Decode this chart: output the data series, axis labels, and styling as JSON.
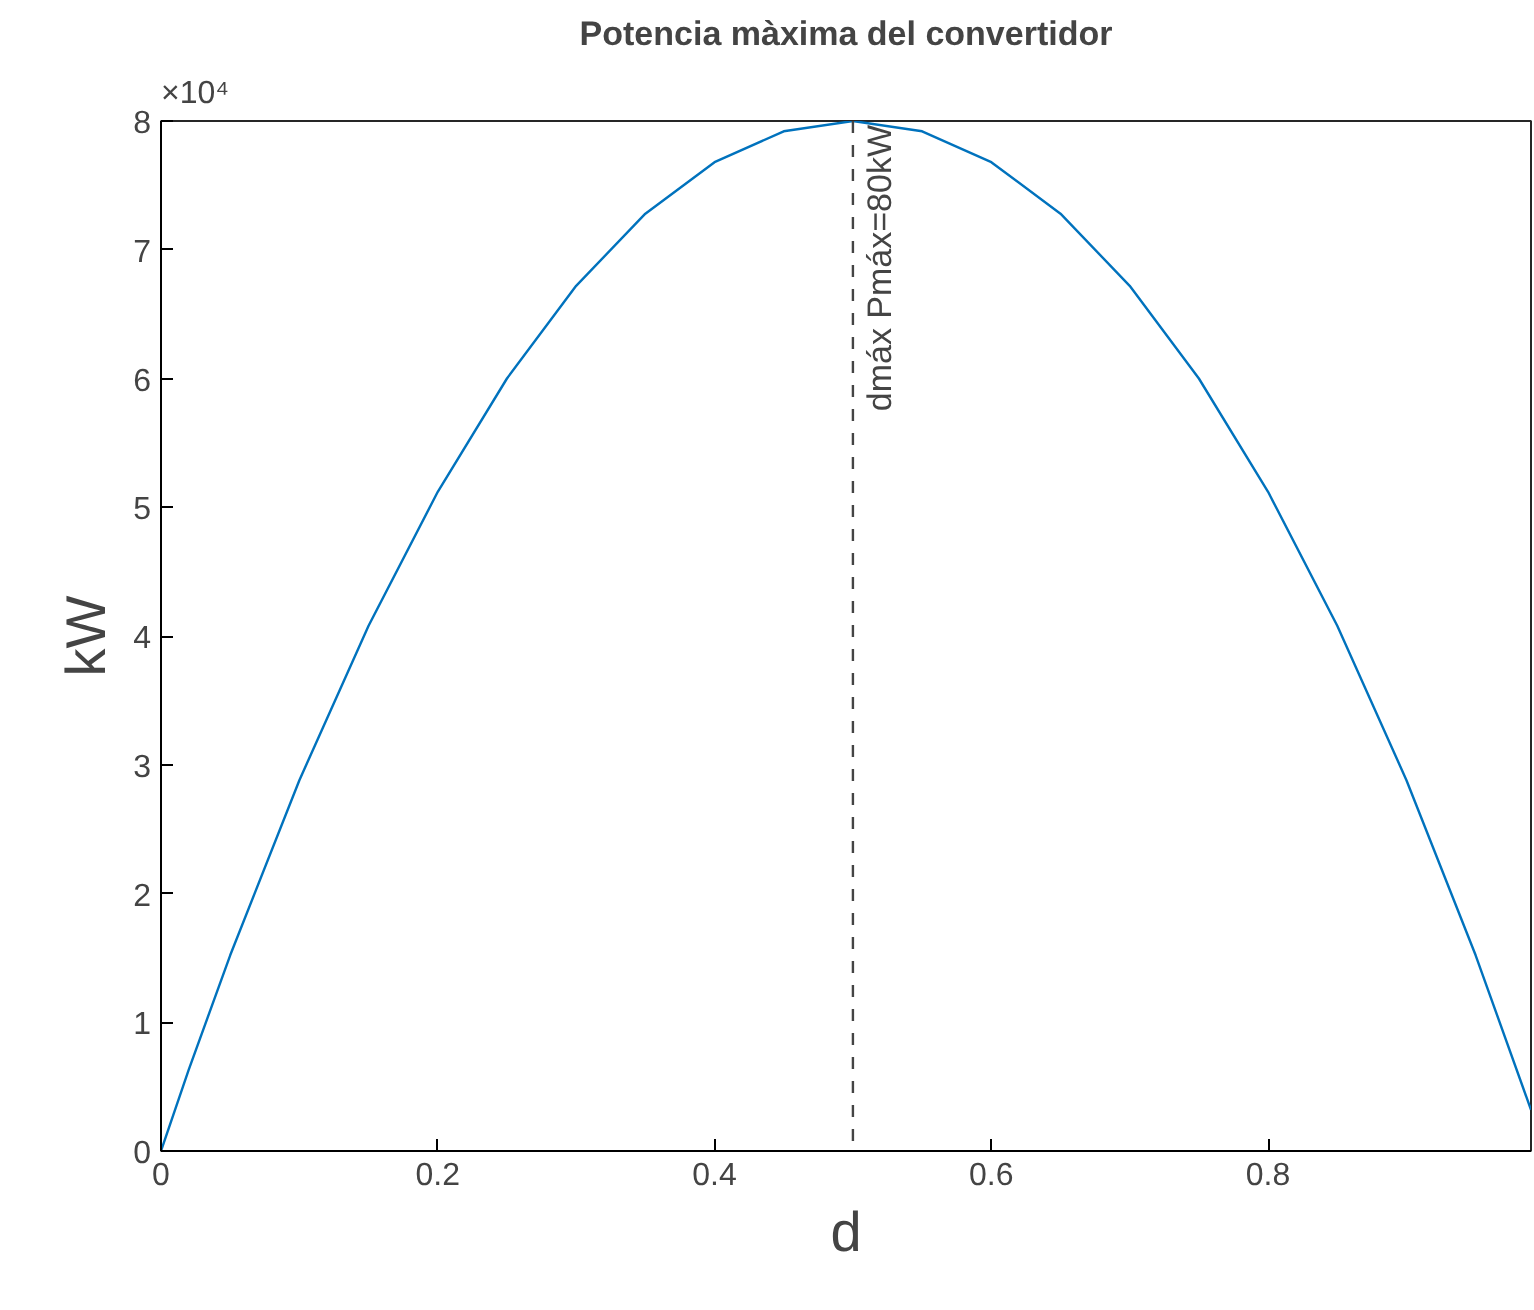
{
  "chart_data": {
    "type": "line",
    "title": "Potencia màxima del convertidor",
    "xlabel": "d",
    "ylabel": "kW",
    "x": [
      0,
      0.02,
      0.05,
      0.1,
      0.15,
      0.2,
      0.25,
      0.3,
      0.35,
      0.4,
      0.45,
      0.5,
      0.55,
      0.6,
      0.65,
      0.7,
      0.75,
      0.8,
      0.85,
      0.9,
      0.95,
      0.99
    ],
    "series": [
      {
        "color": "#0072bd",
        "values": [
          0,
          0.63,
          1.52,
          2.88,
          4.08,
          5.12,
          6,
          6.72,
          7.28,
          7.68,
          7.92,
          8,
          7.92,
          7.68,
          7.28,
          6.72,
          6,
          5.12,
          4.08,
          2.88,
          1.52,
          0.32
        ]
      }
    ],
    "xlim": [
      0,
      0.99
    ],
    "xticks": [
      0,
      0.2,
      0.4,
      0.6,
      0.8
    ],
    "ylim": [
      0,
      8
    ],
    "yticks": [
      0,
      1,
      2,
      3,
      4,
      5,
      6,
      7,
      8
    ],
    "annotations": [
      "×10⁴",
      {
        "text": "dmáx Pmáx=80kW",
        "x": 0.5,
        "y": 8
      }
    ],
    "ref_lines": [
      {
        "axis": "x",
        "value": 0.5,
        "color": "#444444",
        "line_style": "dashed"
      }
    ],
    "grid": false,
    "line_style": "solid",
    "marker": "none"
  }
}
